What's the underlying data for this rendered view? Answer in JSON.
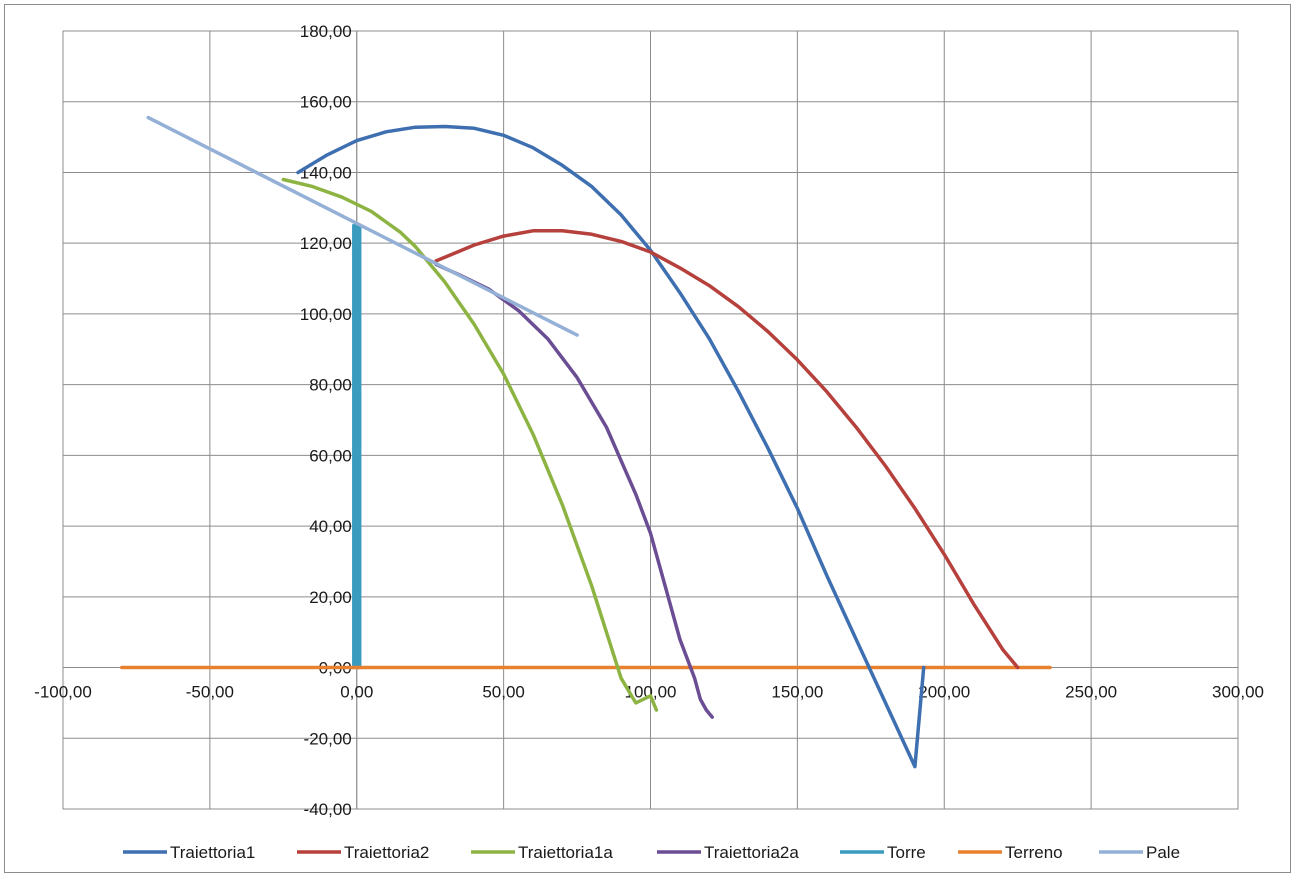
{
  "chart_data": {
    "type": "line",
    "title": "",
    "xlabel": "",
    "ylabel": "",
    "xlim": [
      -100,
      300
    ],
    "ylim": [
      -40,
      180
    ],
    "xticks": [
      -100,
      -50,
      0,
      50,
      100,
      150,
      200,
      250,
      300
    ],
    "yticks": [
      -40,
      -20,
      0,
      20,
      40,
      60,
      80,
      100,
      120,
      140,
      160,
      180
    ],
    "xtick_labels": [
      "-100,00",
      "-50,00",
      "0,00",
      "50,00",
      "100,00",
      "150,00",
      "200,00",
      "250,00",
      "300,00"
    ],
    "ytick_labels": [
      "-40,00",
      "-20,00",
      "0,00",
      "20,00",
      "40,00",
      "60,00",
      "80,00",
      "100,00",
      "120,00",
      "140,00",
      "160,00",
      "180,00"
    ],
    "grid": true,
    "legend_position": "bottom",
    "series": [
      {
        "name": "Traiettoria1",
        "color": "#4472c4-dark",
        "stroke": "#3e6fb0",
        "x": [
          -20,
          -10,
          0,
          10,
          20,
          30,
          40,
          50,
          60,
          70,
          80,
          90,
          100,
          110,
          120,
          130,
          140,
          150,
          160,
          170,
          180,
          190,
          193
        ],
        "y": [
          140,
          145,
          149,
          151.5,
          152.8,
          153,
          152.5,
          150.5,
          147,
          142,
          136,
          128,
          118,
          106,
          93,
          78,
          62,
          45,
          26,
          8,
          -10,
          -28,
          0
        ]
      },
      {
        "name": "Traiettoria2",
        "color": "#c0504d",
        "stroke": "#b5403c",
        "x": [
          27,
          40,
          50,
          60,
          70,
          80,
          90,
          100,
          110,
          120,
          130,
          140,
          150,
          160,
          170,
          180,
          190,
          200,
          210,
          220,
          225
        ],
        "y": [
          115,
          119.5,
          122,
          123.5,
          123.5,
          122.5,
          120.5,
          117.5,
          113,
          108,
          102,
          95,
          87,
          78,
          68,
          57,
          45,
          32,
          18,
          5,
          0
        ]
      },
      {
        "name": "Traiettoria1a",
        "color": "#9bbb59",
        "stroke": "#8db443",
        "x": [
          -25,
          -15,
          -5,
          0,
          5,
          10,
          15,
          20,
          25,
          30,
          40,
          50,
          60,
          70,
          80,
          90,
          95,
          100,
          102
        ],
        "y": [
          138,
          136,
          133,
          131,
          129,
          126,
          123,
          119,
          114,
          109,
          97,
          83,
          66,
          46,
          23,
          -3,
          -10,
          -8,
          -12
        ]
      },
      {
        "name": "Traiettoria2a",
        "color": "#7f5ea0",
        "stroke": "#6b4d94",
        "x": [
          27,
          35,
          45,
          55,
          65,
          75,
          85,
          95,
          100,
          105,
          110,
          115,
          117,
          119,
          121
        ],
        "y": [
          114,
          111,
          107,
          101,
          93,
          82,
          68,
          49,
          38,
          23,
          8,
          -3,
          -9,
          -12,
          -14
        ]
      },
      {
        "name": "Torre",
        "color": "#4bacc6",
        "stroke": "#3a9bbe",
        "x": [
          -1,
          -1,
          0,
          0,
          1,
          1
        ],
        "y": [
          0,
          125,
          125,
          0,
          0,
          125
        ]
      },
      {
        "name": "Terreno",
        "color": "#f79646",
        "stroke": "#e8812f",
        "x": [
          -80,
          236
        ],
        "y": [
          0,
          0
        ]
      },
      {
        "name": "Pale",
        "color": "#95b3d7",
        "stroke": "#94b0d6",
        "x": [
          -71,
          75
        ],
        "y": [
          155.5,
          94
        ]
      }
    ]
  }
}
